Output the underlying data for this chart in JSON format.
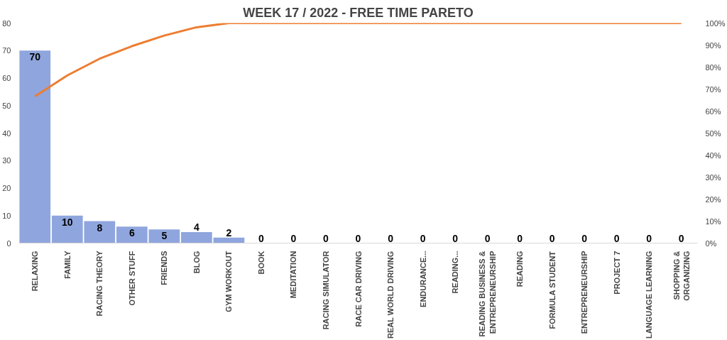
{
  "chart_data": {
    "type": "bar",
    "title": "WEEK 17 / 2022 - FREE TIME PARETO",
    "categories": [
      "RELAXING",
      "FAMILY",
      "RACING THEORY",
      "OTHER STUFF",
      "FRIENDS",
      "BLOG",
      "GYM WORKOUT",
      "BOOK",
      "MEDITATION",
      "RACING SIMULATOR",
      "RACE CAR DRIVING",
      "REAL WORLD DRIVING",
      "ENDURANCE...",
      "READING...",
      "READING BUSINESS &\nENTREPRENEURSHIP",
      "READING",
      "FORMULA STUDENT",
      "ENTREPRENEURSHIP",
      "PROJECT 7",
      "LANGUAGE LEARNING",
      "SHOPPING &\nORGANIZING"
    ],
    "series": [
      {
        "color": "#8fa5dd",
        "values": [
          70,
          10,
          8,
          6,
          5,
          4,
          2,
          0,
          0,
          0,
          0,
          0,
          0,
          0,
          0,
          0,
          0,
          0,
          0,
          0,
          0
        ],
        "value_labels": [
          "70",
          "10",
          "8",
          "6",
          "5",
          "4",
          "2",
          "0",
          "0",
          "0",
          "0",
          "0",
          "0",
          "0",
          "0",
          "0",
          "0",
          "0",
          "0",
          "0",
          "0"
        ]
      },
      {
        "type": "line",
        "axis": "y2",
        "color": "#ed7d31",
        "values": [
          66.7,
          76.2,
          83.8,
          89.5,
          94.3,
          98.1,
          100,
          100,
          100,
          100,
          100,
          100,
          100,
          100,
          100,
          100,
          100,
          100,
          100,
          100,
          100
        ]
      }
    ],
    "ylim": [
      0,
      80
    ],
    "yticks": [
      0,
      10,
      20,
      30,
      40,
      50,
      60,
      70,
      80
    ],
    "y2lim": [
      0,
      100
    ],
    "y2ticks": [
      {
        "value": 0,
        "label": "0%"
      },
      {
        "value": 10,
        "label": "10%"
      },
      {
        "value": 20,
        "label": "20%"
      },
      {
        "value": 30,
        "label": "30%"
      },
      {
        "value": 40,
        "label": "40%"
      },
      {
        "value": 50,
        "label": "50%"
      },
      {
        "value": 60,
        "label": "60%"
      },
      {
        "value": 70,
        "label": "70%"
      },
      {
        "value": 80,
        "label": "80%"
      },
      {
        "value": 90,
        "label": "90%"
      },
      {
        "value": 100,
        "label": "100%"
      }
    ],
    "grid": false
  }
}
